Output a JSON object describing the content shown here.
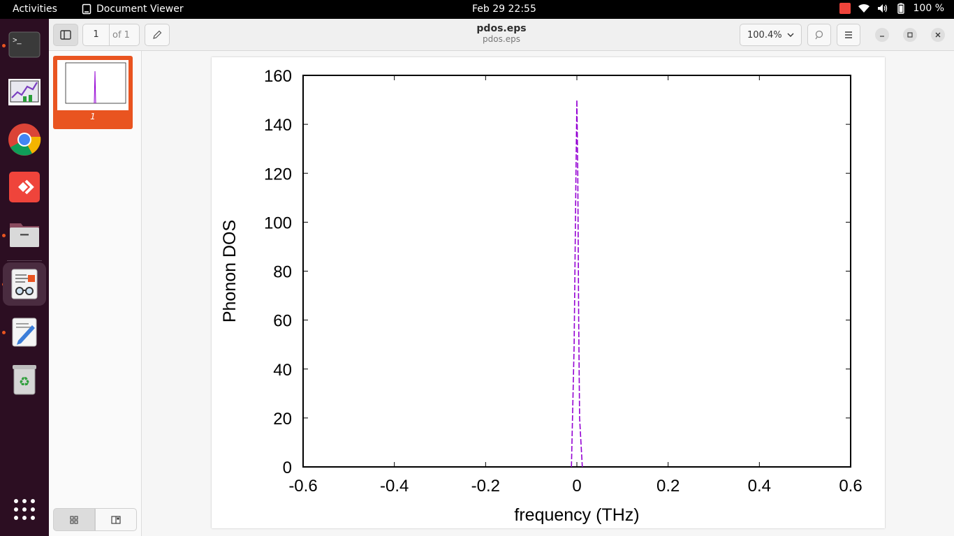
{
  "topbar": {
    "activities": "Activities",
    "app_name": "Document Viewer",
    "clock": "Feb 29  22:55",
    "battery": "100 %"
  },
  "dock": {
    "items": [
      "terminal",
      "chart-app",
      "chrome",
      "anydesk",
      "files",
      "document-viewer",
      "text-editor",
      "trash",
      "show-apps"
    ]
  },
  "toolbar": {
    "page_current": "1",
    "page_total": "of 1",
    "zoom": "100.4%"
  },
  "window": {
    "title": "pdos.eps",
    "subtitle": "pdos.eps"
  },
  "sidebar": {
    "thumb_label": "1",
    "accent": "#e95420"
  },
  "chart_data": {
    "type": "line",
    "xlabel": "frequency (THz)",
    "ylabel": "Phonon DOS",
    "xlim": [
      -0.6,
      0.6
    ],
    "ylim": [
      0,
      160
    ],
    "x_ticks": [
      "-0.6",
      "-0.4",
      "-0.2",
      "0",
      "0.2",
      "0.4",
      "0.6"
    ],
    "y_ticks": [
      "0",
      "20",
      "40",
      "60",
      "80",
      "100",
      "120",
      "140",
      "160"
    ],
    "series": [
      {
        "color": "#9400d3",
        "x": [
          -0.012,
          -0.006,
          -0.002,
          0.0,
          0.002,
          0.004,
          0.006,
          0.012
        ],
        "y": [
          0,
          50,
          120,
          150,
          120,
          60,
          20,
          0
        ]
      }
    ],
    "grid": false
  }
}
